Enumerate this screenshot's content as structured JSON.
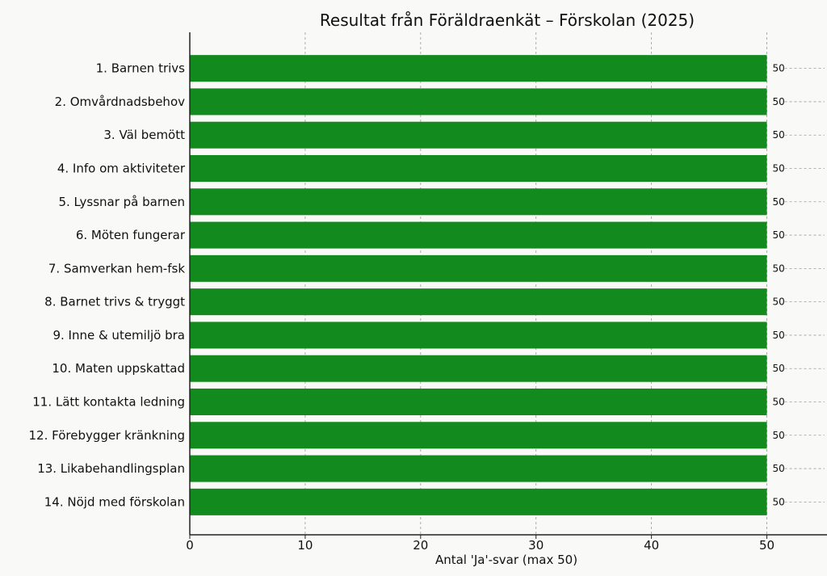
{
  "chart_data": {
    "type": "bar",
    "orientation": "horizontal",
    "title": "Resultat från Föräldraenkät – Förskolan (2025)",
    "xlabel": "Antal 'Ja'-svar (max 50)",
    "ylabel": "",
    "categories": [
      "1. Barnen trivs",
      "2. Omvårdnadsbehov",
      "3. Väl bemött",
      "4. Info om aktiviteter",
      "5. Lyssnar på barnen",
      "6. Möten fungerar",
      "7. Samverkan hem-fsk",
      "8. Barnet trivs & tryggt",
      "9. Inne & utemiljö bra",
      "10. Maten uppskattad",
      "11. Lätt kontakta ledning",
      "12. Förebygger kränkning",
      "13. Likabehandlingsplan",
      "14. Nöjd med förskolan"
    ],
    "values": [
      50,
      50,
      50,
      50,
      50,
      50,
      50,
      50,
      50,
      50,
      50,
      50,
      50,
      50
    ],
    "data_labels": [
      "50",
      "50",
      "50",
      "50",
      "50",
      "50",
      "50",
      "50",
      "50",
      "50",
      "50",
      "50",
      "50",
      "50"
    ],
    "xlim": [
      0,
      55
    ],
    "xticks": [
      0,
      10,
      20,
      30,
      40,
      50
    ],
    "xtick_labels": [
      "0",
      "10",
      "20",
      "30",
      "40",
      "50"
    ],
    "grid": "x-axis dashed",
    "bar_color": "#138a1e"
  }
}
